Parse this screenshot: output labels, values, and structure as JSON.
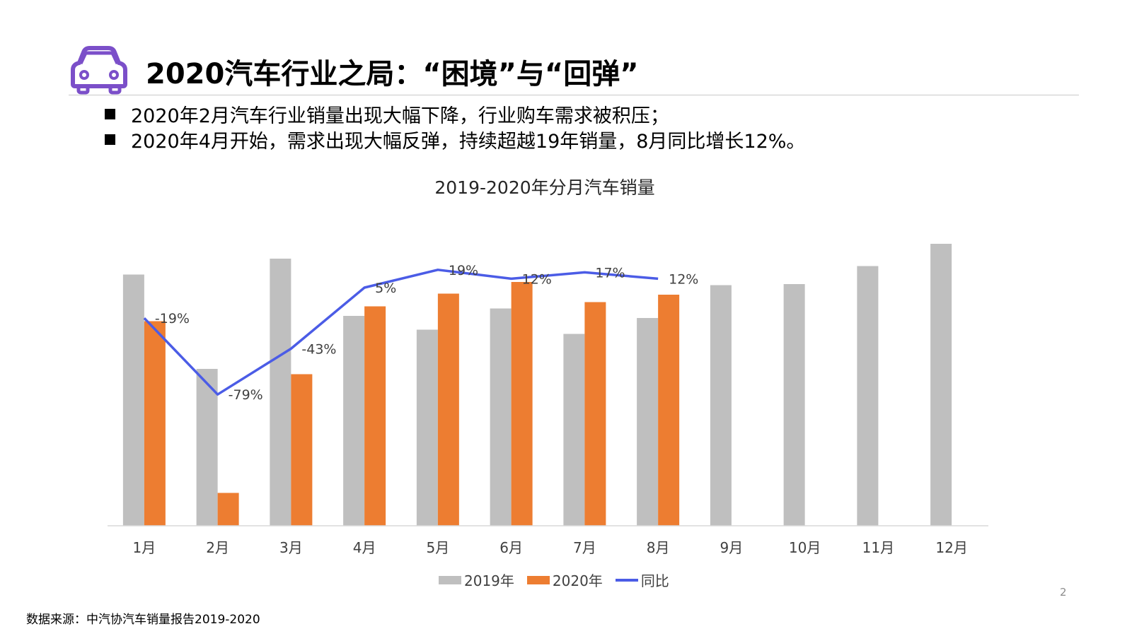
{
  "slide": {
    "title": "2020汽车行业之局：“困境”与“回弹”",
    "bullets": [
      "2020年2月汽车行业销量出现大幅下降，行业购车需求被积压；",
      "2020年4月开始，需求出现大幅反弹，持续超越19年销量，8月同比增长12%。"
    ],
    "page_number": "2",
    "source": "数据来源：中汽协汽车销量报告2019-2020",
    "icon": "car-icon",
    "icon_color": "#7b4fc9"
  },
  "chart_data": {
    "type": "bar",
    "title": "2019-2020年分月汽车销量",
    "categories": [
      "1月",
      "2月",
      "3月",
      "4月",
      "5月",
      "6月",
      "7月",
      "8月",
      "9月",
      "10月",
      "11月",
      "12月"
    ],
    "series": [
      {
        "name": "2019年",
        "type": "bar",
        "color": "#bfbfbf",
        "values": [
          2.37,
          1.48,
          2.52,
          1.98,
          1.85,
          2.05,
          1.81,
          1.96,
          2.27,
          2.28,
          2.45,
          2.66
        ]
      },
      {
        "name": "2020年",
        "type": "bar",
        "color": "#ed7d31",
        "values": [
          1.93,
          0.31,
          1.43,
          2.07,
          2.19,
          2.3,
          2.11,
          2.18,
          null,
          null,
          null,
          null
        ]
      },
      {
        "name": "同比",
        "type": "line",
        "color": "#4b5ce6",
        "values": [
          -19,
          -79,
          -43,
          5,
          19,
          12,
          17,
          12,
          null,
          null,
          null,
          null
        ],
        "labels": [
          "-19%",
          "-79%",
          "-43%",
          "5%",
          "19%",
          "12%",
          "17%",
          "12%",
          "",
          "",
          "",
          ""
        ]
      }
    ],
    "legend": "bottom",
    "grid": false
  }
}
